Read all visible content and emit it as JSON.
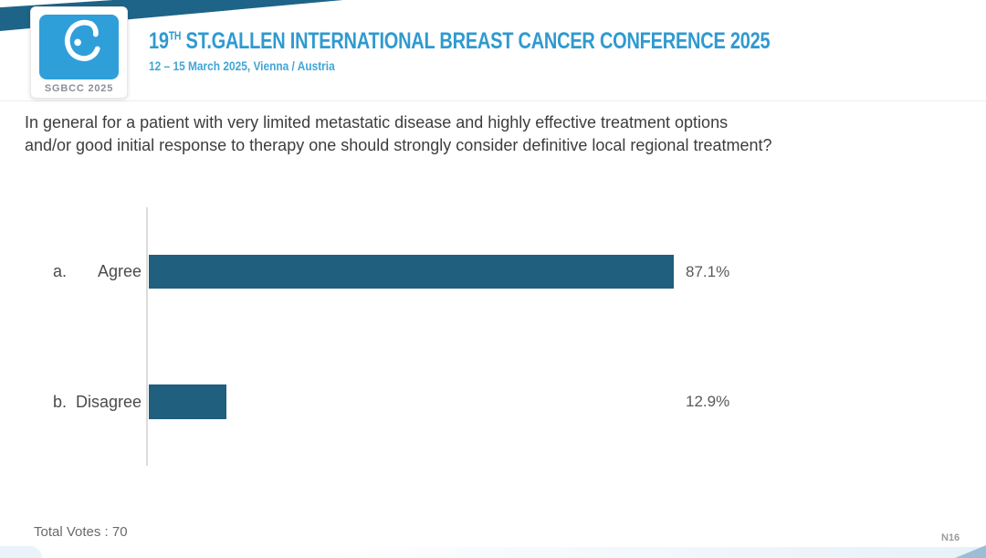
{
  "branding": {
    "logo_caption": "SGBCC 2025",
    "logo_icon": "sgbcc-ribbon-icon",
    "logo_blue": "#2f9fd9"
  },
  "header": {
    "title_num": "19",
    "title_sup": "TH",
    "title_rest": " ST.GALLEN INTERNATIONAL BREAST CANCER CONFERENCE 2025",
    "subtitle": "12 – 15 March 2025, Vienna / Austria",
    "accent_color": "#2f9ad0",
    "band_color": "#1d6488"
  },
  "question": {
    "line1": "In general for a patient with very limited metastatic disease and highly effective treatment options",
    "line2": "and/or good initial response to therapy one should strongly consider definitive local regional treatment?"
  },
  "chart_data": {
    "type": "bar",
    "orientation": "horizontal",
    "title": "In general for a patient with very limited metastatic disease and highly effective treatment options and/or good initial response to therapy one should strongly consider definitive local regional treatment?",
    "option_letters": [
      "a.",
      "b."
    ],
    "categories": [
      "Agree",
      "Disagree"
    ],
    "values": [
      87.1,
      12.9
    ],
    "value_labels": [
      "87.1%",
      "12.9%"
    ],
    "xlim": [
      0,
      100
    ],
    "bar_color": "#205f7d",
    "axis_color": "#dcdcdc",
    "grid": false,
    "legend": "none",
    "total_votes": 70
  },
  "footer": {
    "total_votes_text": "Total Votes : 70",
    "slide_code": "N16"
  }
}
